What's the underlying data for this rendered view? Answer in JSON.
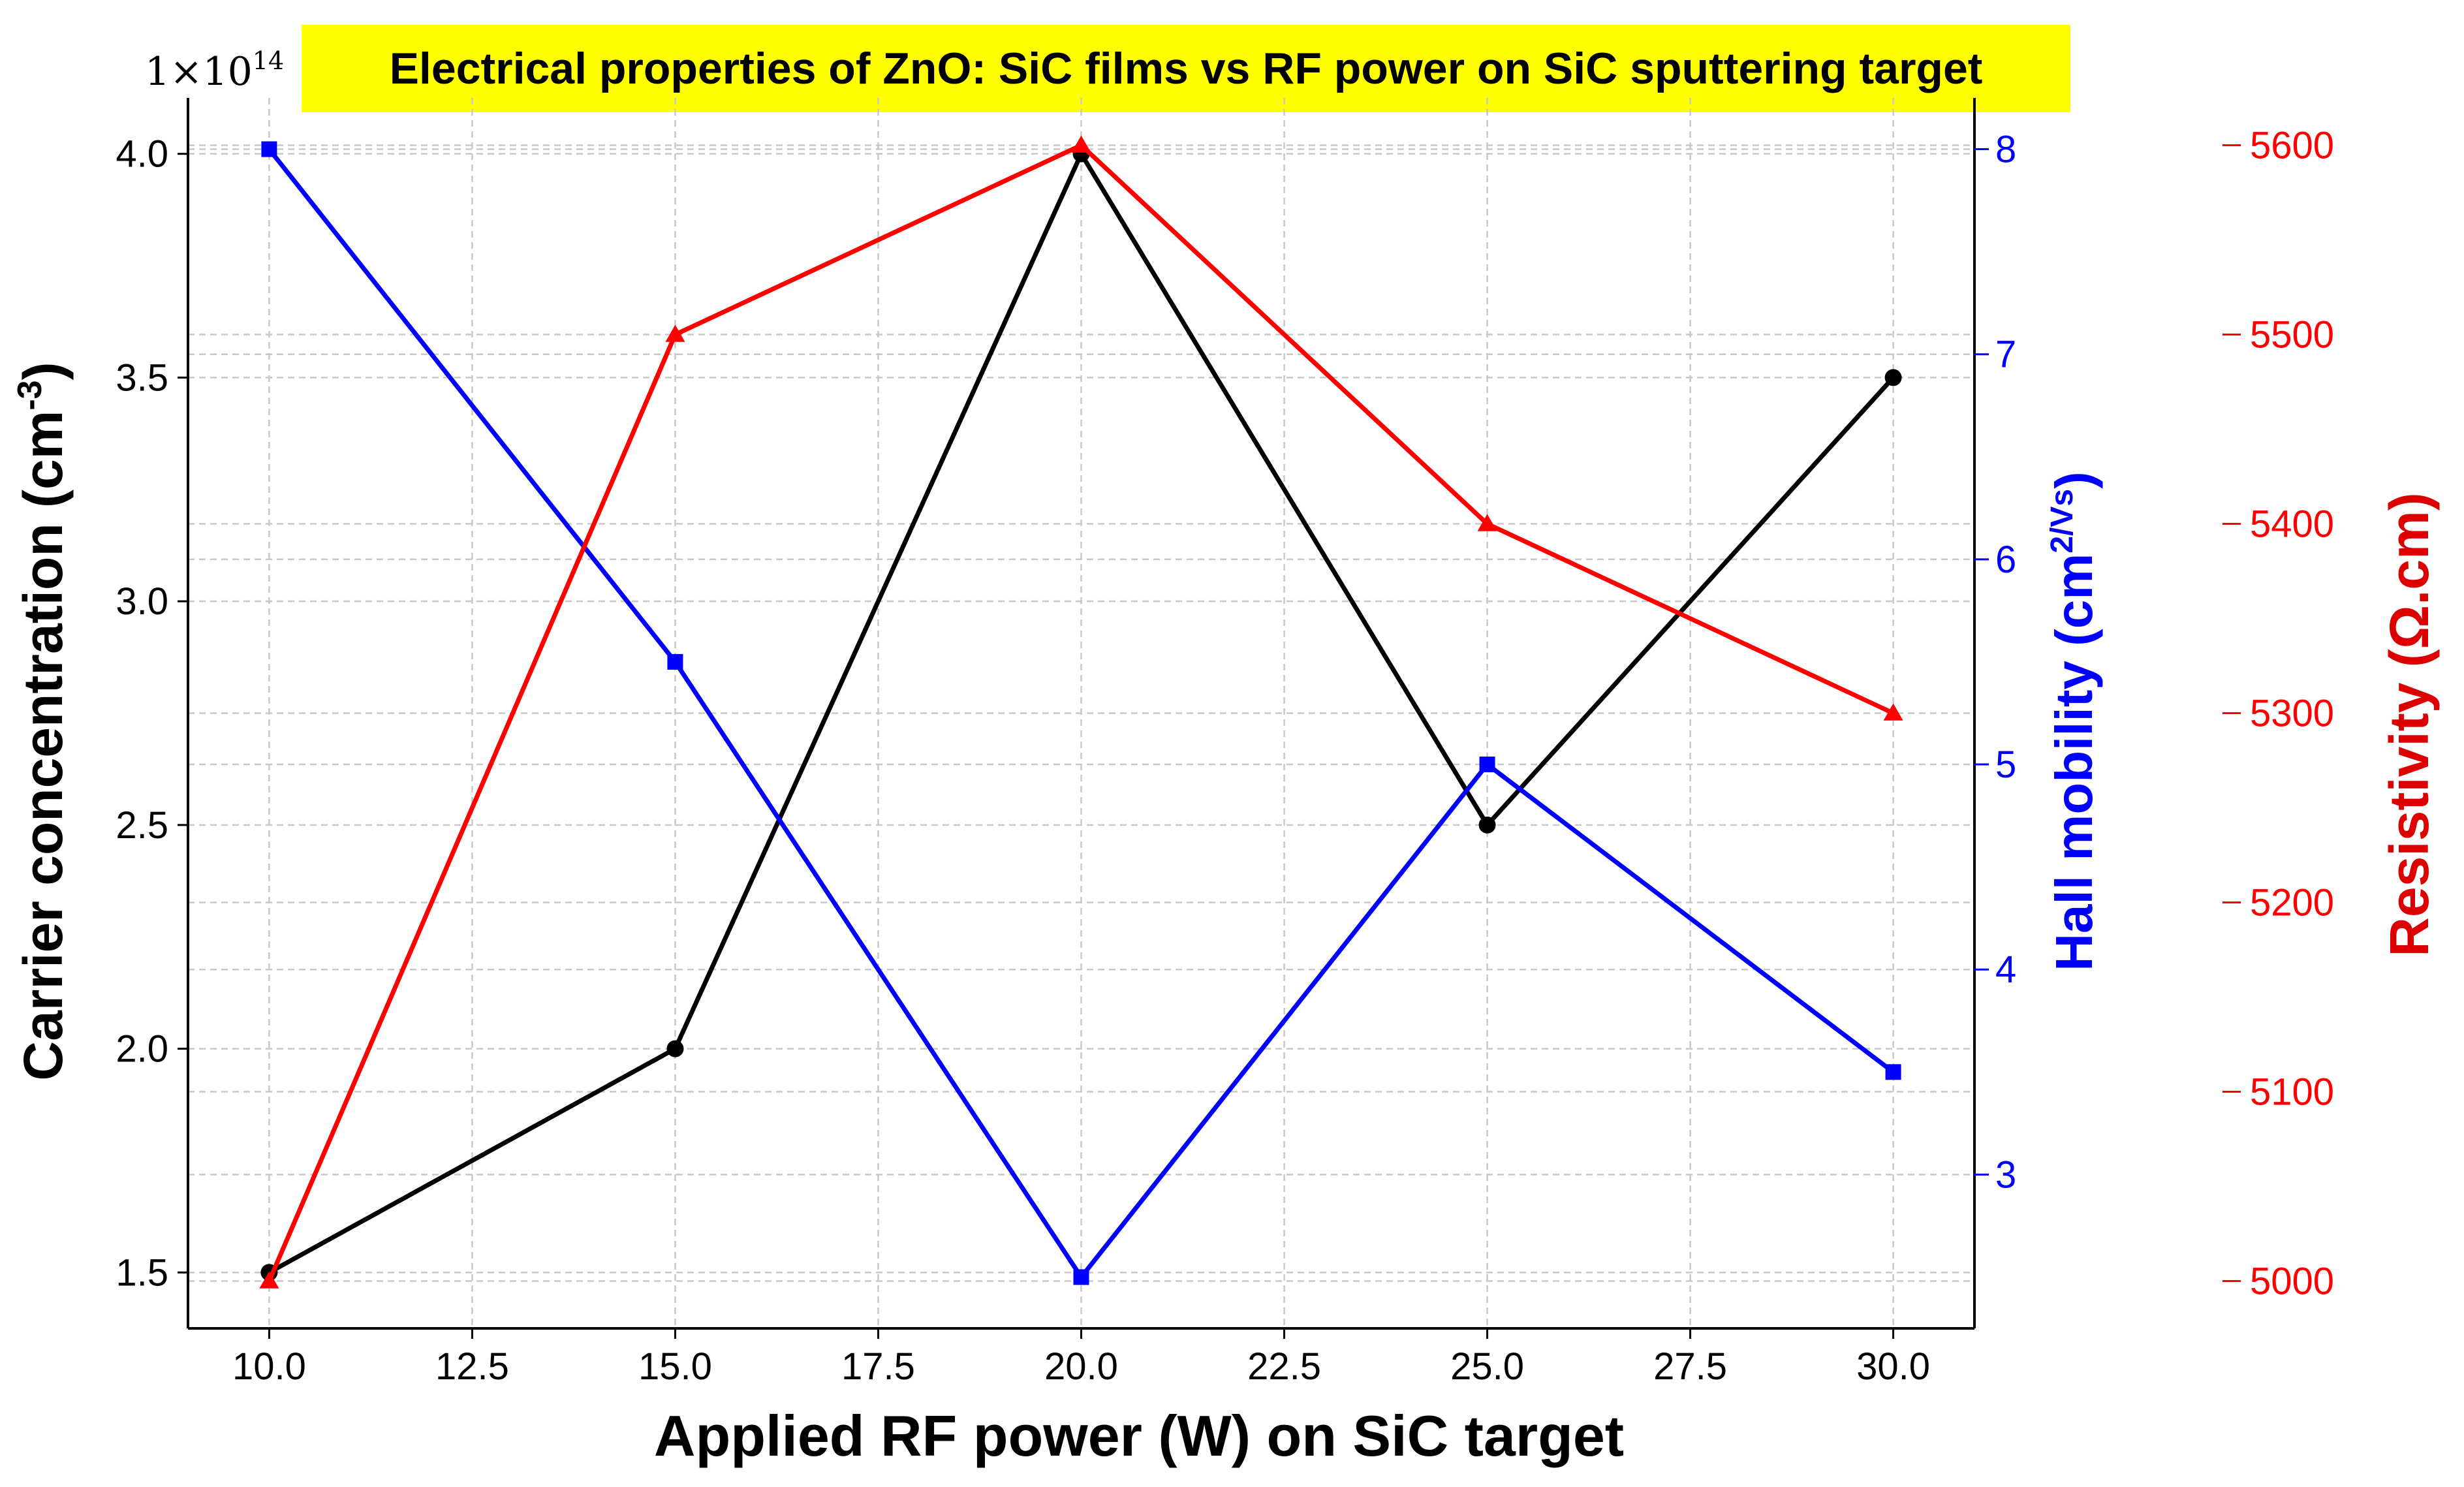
{
  "chart_data": {
    "type": "line",
    "title": "Electrical properties of ZnO: SiC films vs RF power on SiC sputtering target",
    "title_background": "#ffff00",
    "xlabel": "Applied RF power (W) on SiC target",
    "xlim": [
      9.0,
      31.0
    ],
    "x_ticks": [
      "10.0",
      "12.5",
      "15.0",
      "17.5",
      "20.0",
      "22.5",
      "25.0",
      "27.5",
      "30.0"
    ],
    "x_tick_values": [
      10,
      12.5,
      15,
      17.5,
      20,
      22.5,
      25,
      27.5,
      30
    ],
    "grid": true,
    "axes": {
      "left": {
        "label_main": "Carrier concentration (cm",
        "label_sup": "-3",
        "label_end": ")",
        "offset_text": "1×10",
        "offset_exp": "14",
        "ylim": [
          1.375,
          4.125
        ],
        "ticks": [
          "1.5",
          "2.0",
          "2.5",
          "3.0",
          "3.5",
          "4.0"
        ],
        "tick_values": [
          1.5,
          2.0,
          2.5,
          3.0,
          3.5,
          4.0
        ],
        "color": "#000000"
      },
      "right1": {
        "label_main": "Hall mobility (cm",
        "label_sup": "2/Vs",
        "label_end": ")",
        "ylim": [
          2.25,
          8.25
        ],
        "ticks": [
          "3",
          "4",
          "5",
          "6",
          "7",
          "8"
        ],
        "tick_values": [
          3,
          4,
          5,
          6,
          7,
          8
        ],
        "color": "#0000ff"
      },
      "right2": {
        "label": "Resistivity (Ω.cm)",
        "ylim": [
          4975,
          5625
        ],
        "ticks": [
          "5000",
          "5100",
          "5200",
          "5300",
          "5400",
          "5500",
          "5600"
        ],
        "tick_values": [
          5000,
          5100,
          5200,
          5300,
          5400,
          5500,
          5600
        ],
        "color": "#ff0000"
      }
    },
    "x": [
      10,
      15,
      20,
      25,
      30
    ],
    "series": [
      {
        "axis": "left",
        "marker": "circle",
        "color": "#000000",
        "values": [
          1.5,
          2.0,
          4.0,
          2.5,
          3.5
        ]
      },
      {
        "axis": "right1",
        "marker": "square",
        "color": "#0000ff",
        "values": [
          8.0,
          5.5,
          2.5,
          5.0,
          3.5
        ]
      },
      {
        "axis": "right2",
        "marker": "triangle",
        "color": "#ff0000",
        "values": [
          5000,
          5500,
          5600,
          5400,
          5300
        ]
      }
    ]
  }
}
